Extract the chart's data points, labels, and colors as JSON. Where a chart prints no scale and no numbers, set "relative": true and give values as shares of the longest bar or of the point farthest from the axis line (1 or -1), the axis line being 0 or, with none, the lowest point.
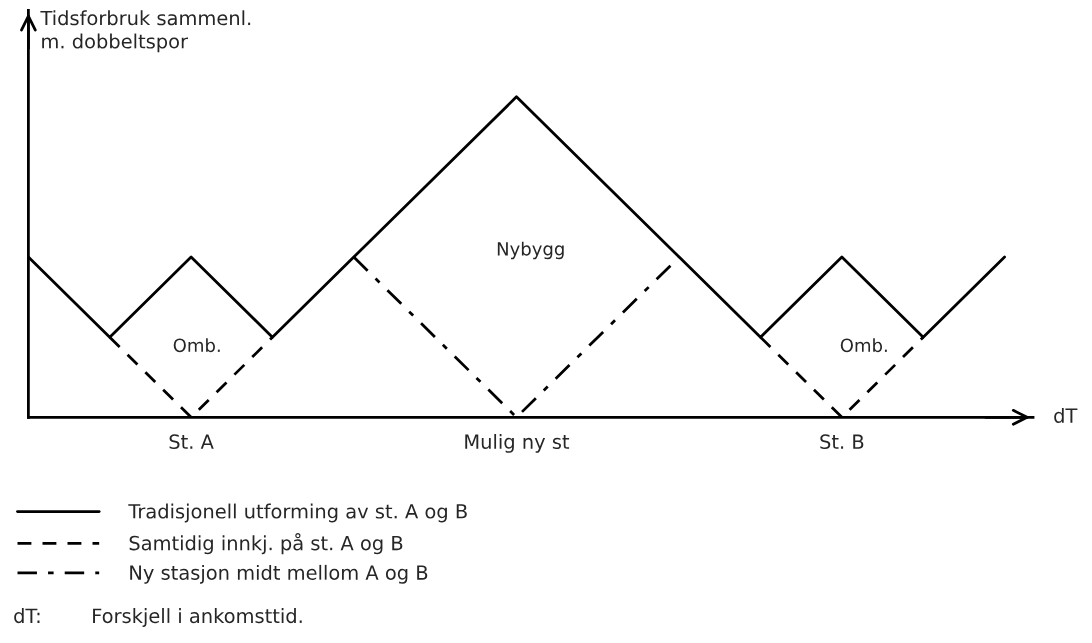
{
  "chart_data": {
    "type": "line",
    "relative": true,
    "ylabel": "Tidsforbruk sammenl.\nm. dobbeltspor",
    "xlabel": "dT",
    "categories": [
      null,
      null,
      "St. A",
      null,
      null,
      null,
      "Mulig ny st",
      null,
      null,
      null,
      "St. B",
      null,
      null
    ],
    "series": [
      {
        "name": "Tradisjonell utforming av st. A og B",
        "color": "#000000",
        "line_style": "solid",
        "values": [
          0.5,
          0.25,
          0.5,
          0.25,
          0.5,
          0.75,
          1,
          0.75,
          0.5,
          0.25,
          0.5,
          0.25,
          0.5
        ]
      },
      {
        "name": "Samtidig innkj. på st. A og B",
        "color": "#000000",
        "line_style": "dashed",
        "values": [
          null,
          0.25,
          0,
          0.25,
          null,
          null,
          null,
          null,
          null,
          0.25,
          0,
          0.25,
          null
        ]
      },
      {
        "name": "Ny stasjon midt mellom A og B",
        "color": "#000000",
        "line_style": "dashdot",
        "values": [
          null,
          null,
          null,
          null,
          0.5,
          0.25,
          0,
          0.25,
          0.5,
          null,
          null,
          null,
          null
        ]
      }
    ],
    "annotations": [
      "Omb.",
      "Nybygg",
      "Omb.",
      "dT:        Forskjell i ankomsttid."
    ],
    "legend": "bottom left",
    "grid": false,
    "marker": "none"
  }
}
